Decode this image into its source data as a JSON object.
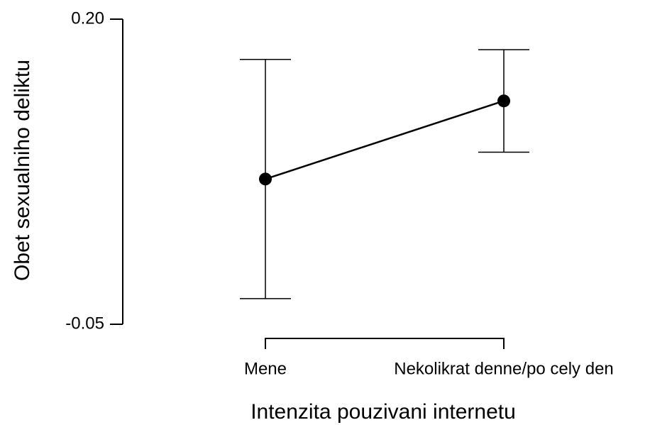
{
  "chart_data": {
    "type": "errorbar-line",
    "x_label": "Intenzita pouzivani internetu",
    "y_label": "Obet sexualniho deliktu",
    "categories": [
      "Mene",
      "Nekolikrat denne/po cely den"
    ],
    "values": [
      0.069,
      0.133
    ],
    "errors": [
      0.098,
      0.042
    ],
    "color": "#000000",
    "ylim": [
      -0.05,
      0.2
    ],
    "yticks": [
      {
        "value": 0.2,
        "label": "0.20"
      },
      -0.05
    ]
  }
}
